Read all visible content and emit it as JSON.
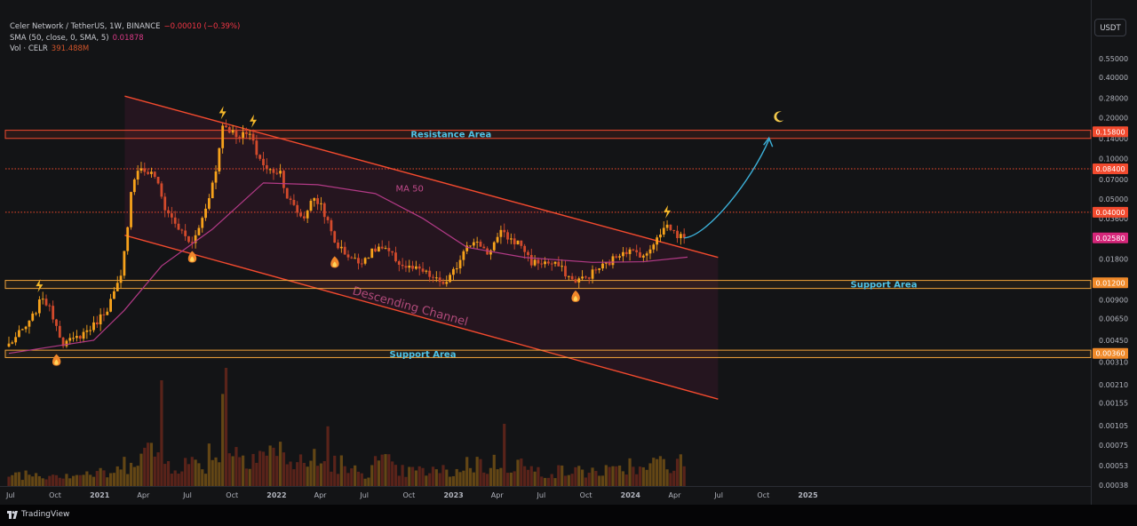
{
  "header": {
    "symbol_line": "Celer Network / TetherUS, 1W, BINANCE",
    "change": "−0.00010 (−0.39%)",
    "sma_label": "SMA (50, close, 0, SMA, 5)",
    "sma_value": "0.01878",
    "vol_label": "Vol · CELR",
    "vol_value": "391.488M"
  },
  "currency_button": "USDT",
  "branding": "TradingView",
  "colors": {
    "background": "#131416",
    "up_candle": "#f7a21b",
    "down_candle": "#d24a2c",
    "channel_line": "#f24a2e",
    "ma_line": "#b23a86",
    "resistance_box": "#f24a2e",
    "support_box": "#f0a23a",
    "projection": "#3cb0d8",
    "zone_text": "#4fc3e6"
  },
  "chart_data": {
    "type": "candlestick",
    "interval": "1W",
    "y_scale": "log",
    "ylim": [
      0.00018,
      1.0
    ],
    "x_ticks": [
      "Jul",
      "Oct",
      "2021",
      "Apr",
      "Jul",
      "Oct",
      "2022",
      "Apr",
      "Jul",
      "Oct",
      "2023",
      "Apr",
      "Jul",
      "Oct",
      "2024",
      "Apr",
      "Jul",
      "Oct",
      "2025"
    ],
    "y_ticks": [
      "0.55000",
      "0.40000",
      "0.28000",
      "0.20000",
      "0.14000",
      "0.10000",
      "0.07000",
      "0.05000",
      "0.03600",
      "0.02500",
      "0.01800",
      "0.01200",
      "0.00900",
      "0.00650",
      "0.00450",
      "0.00310",
      "0.00210",
      "0.00155",
      "0.00105",
      "0.00075",
      "0.00053",
      "0.00038"
    ],
    "y_tick_values": [
      0.55,
      0.4,
      0.28,
      0.2,
      0.14,
      0.1,
      0.07,
      0.05,
      0.036,
      0.025,
      0.018,
      0.012,
      0.009,
      0.0065,
      0.0045,
      0.0031,
      0.0021,
      0.00155,
      0.00105,
      0.00075,
      0.00053,
      0.00038
    ],
    "price_badges": [
      {
        "label": "0.15800",
        "value": 0.158,
        "color": "#f24a2e"
      },
      {
        "label": "0.08400",
        "value": 0.084,
        "color": "#f24a2e"
      },
      {
        "label": "0.04000",
        "value": 0.04,
        "color": "#f24a2e"
      },
      {
        "label": "0.02580",
        "value": 0.0258,
        "color": "#d6267a"
      },
      {
        "label": "0.01200",
        "value": 0.012,
        "color": "#f08a2a"
      },
      {
        "label": "0.00360",
        "value": 0.0036,
        "color": "#f08a2a"
      }
    ],
    "dotted_levels": [
      0.084,
      0.04
    ],
    "zones": [
      {
        "name": "Resistance Area",
        "top": 0.162,
        "bottom": 0.141
      },
      {
        "name": "Support Area",
        "top": 0.0125,
        "bottom": 0.0109
      },
      {
        "name": "Support Area",
        "top": 0.0038,
        "bottom": 0.00335
      }
    ],
    "channel": {
      "label": "Descending Channel",
      "upper": [
        [
          "2021-03-01",
          0.29
        ],
        [
          "2024-07-07",
          0.0185
        ]
      ],
      "lower": [
        [
          "2021-03-01",
          0.027
        ],
        [
          "2024-07-07",
          0.00165
        ]
      ]
    },
    "ma_label": "MA 50",
    "annotations": {
      "bolt": [
        "2020-09-06",
        "2021-09-19",
        "2021-11-21",
        "2024-03-24"
      ],
      "fire": [
        "2020-10-11",
        "2021-07-18",
        "2022-05-08",
        "2023-09-17"
      ],
      "moon": "2024-11-10"
    },
    "projection": [
      [
        "2024-04-28",
        0.0258
      ],
      [
        "2024-06-16",
        0.03
      ],
      [
        "2024-09-15",
        0.07
      ],
      [
        "2024-10-20",
        0.138
      ]
    ],
    "anchors": [
      [
        "2020-07-05",
        0.0042
      ],
      [
        "2020-08-16",
        0.006
      ],
      [
        "2020-09-13",
        0.0095
      ],
      [
        "2020-10-04",
        0.0068
      ],
      [
        "2020-10-25",
        0.0043
      ],
      [
        "2020-11-15",
        0.0045
      ],
      [
        "2020-12-27",
        0.0058
      ],
      [
        "2021-01-24",
        0.0078
      ],
      [
        "2021-02-21",
        0.013
      ],
      [
        "2021-03-07",
        0.03
      ],
      [
        "2021-03-14",
        0.06
      ],
      [
        "2021-03-28",
        0.085
      ],
      [
        "2021-05-02",
        0.075
      ],
      [
        "2021-05-23",
        0.043
      ],
      [
        "2021-06-27",
        0.028
      ],
      [
        "2021-07-18",
        0.023
      ],
      [
        "2021-08-08",
        0.036
      ],
      [
        "2021-09-05",
        0.08
      ],
      [
        "2021-09-19",
        0.18
      ],
      [
        "2021-10-17",
        0.15
      ],
      [
        "2021-11-14",
        0.15
      ],
      [
        "2021-11-28",
        0.11
      ],
      [
        "2021-12-19",
        0.082
      ],
      [
        "2022-01-16",
        0.08
      ],
      [
        "2022-01-30",
        0.052
      ],
      [
        "2022-02-20",
        0.04
      ],
      [
        "2022-03-06",
        0.036
      ],
      [
        "2022-03-20",
        0.05
      ],
      [
        "2022-04-10",
        0.046
      ],
      [
        "2022-05-08",
        0.024
      ],
      [
        "2022-05-29",
        0.02
      ],
      [
        "2022-06-26",
        0.017
      ],
      [
        "2022-08-07",
        0.022
      ],
      [
        "2022-08-28",
        0.02
      ],
      [
        "2022-09-25",
        0.016
      ],
      [
        "2022-11-06",
        0.0145
      ],
      [
        "2022-12-04",
        0.0125
      ],
      [
        "2022-12-25",
        0.0118
      ],
      [
        "2023-01-15",
        0.016
      ],
      [
        "2023-02-05",
        0.024
      ],
      [
        "2023-03-05",
        0.023
      ],
      [
        "2023-03-19",
        0.02
      ],
      [
        "2023-04-16",
        0.028
      ],
      [
        "2023-05-07",
        0.025
      ],
      [
        "2023-05-28",
        0.023
      ],
      [
        "2023-06-18",
        0.017
      ],
      [
        "2023-07-16",
        0.017
      ],
      [
        "2023-08-13",
        0.016
      ],
      [
        "2023-09-10",
        0.0125
      ],
      [
        "2023-10-08",
        0.013
      ],
      [
        "2023-10-29",
        0.015
      ],
      [
        "2023-11-26",
        0.017
      ],
      [
        "2023-12-24",
        0.021
      ],
      [
        "2024-01-21",
        0.02
      ],
      [
        "2024-02-11",
        0.019
      ],
      [
        "2024-03-03",
        0.027
      ],
      [
        "2024-03-24",
        0.032
      ],
      [
        "2024-04-14",
        0.027
      ],
      [
        "2024-04-28",
        0.0258
      ]
    ],
    "ma_anchors": [
      [
        "2020-07-05",
        0.0036
      ],
      [
        "2020-12-27",
        0.0045
      ],
      [
        "2021-02-28",
        0.0075
      ],
      [
        "2021-05-16",
        0.016
      ],
      [
        "2021-08-29",
        0.03
      ],
      [
        "2021-12-12",
        0.066
      ],
      [
        "2022-04-03",
        0.064
      ],
      [
        "2022-07-31",
        0.055
      ],
      [
        "2022-11-06",
        0.036
      ],
      [
        "2023-02-05",
        0.022
      ],
      [
        "2023-06-04",
        0.0185
      ],
      [
        "2023-10-22",
        0.017
      ],
      [
        "2024-02-04",
        0.0172
      ],
      [
        "2024-05-05",
        0.0186
      ]
    ],
    "volume": {
      "axis": "log",
      "labels_in_axis": [
        "0.00105",
        "0.00075",
        "0.00053",
        "0.00038"
      ],
      "spikes": [
        [
          "2021-05-16",
          0.85
        ],
        [
          "2021-09-26",
          0.95
        ],
        [
          "2021-09-19",
          0.74
        ],
        [
          "2022-04-24",
          0.48
        ],
        [
          "2023-04-23",
          0.5
        ]
      ]
    }
  }
}
